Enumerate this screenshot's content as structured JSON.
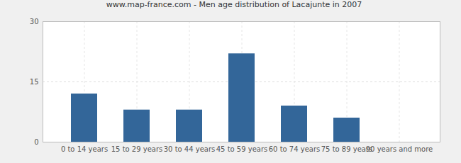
{
  "chart_data": {
    "type": "bar",
    "title": "www.map-france.com - Men age distribution of Lacajunte in 2007",
    "categories": [
      "0 to 14 years",
      "15 to 29 years",
      "30 to 44 years",
      "45 to 59 years",
      "60 to 74 years",
      "75 to 89 years",
      "90 years and more"
    ],
    "values": [
      12,
      8,
      8,
      22,
      9,
      6,
      0
    ],
    "color": "#336699",
    "ylim": [
      0,
      30
    ],
    "yticks": [
      0,
      15,
      30
    ],
    "grid": true
  }
}
